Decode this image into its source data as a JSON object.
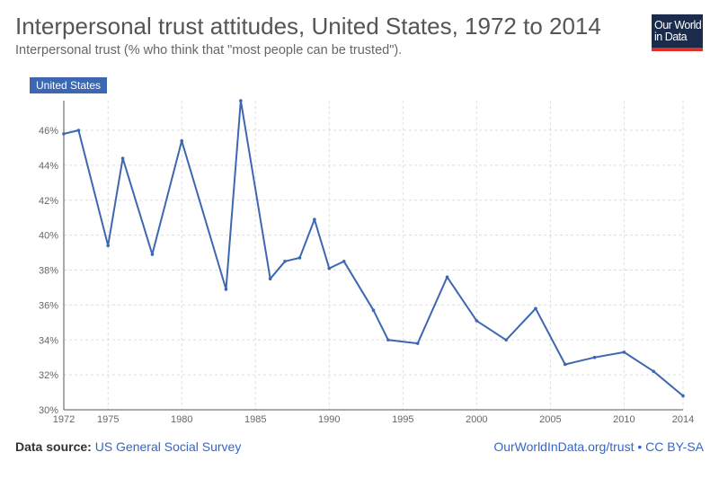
{
  "header": {
    "title": "Interpersonal trust attitudes, United States, 1972 to 2014",
    "subtitle": "Interpersonal trust (% who think that \"most people can be trusted\")."
  },
  "logo": {
    "line1": "Our World",
    "line2": "in Data"
  },
  "footer": {
    "source_label": "Data source:",
    "source_value": "US General Social Survey",
    "link": "OurWorldInData.org/trust",
    "separator": "•",
    "license": "CC BY-SA"
  },
  "colors": {
    "series": "#3d67b0",
    "grid": "#dddddd",
    "axis": "#555555"
  },
  "chart_data": {
    "type": "line",
    "title": "Interpersonal trust attitudes, United States, 1972 to 2014",
    "xlabel": "",
    "ylabel": "",
    "xlim": [
      1972,
      2014
    ],
    "ylim": [
      30,
      47.7
    ],
    "x_ticks": [
      1972,
      1975,
      1980,
      1985,
      1990,
      1995,
      2000,
      2005,
      2010,
      2014
    ],
    "y_ticks": [
      30,
      32,
      34,
      36,
      38,
      40,
      42,
      44,
      46
    ],
    "y_tick_labels": [
      "30%",
      "32%",
      "34%",
      "36%",
      "38%",
      "40%",
      "42%",
      "44%",
      "46%"
    ],
    "grid": true,
    "series": [
      {
        "name": "United States",
        "x": [
          1972,
          1973,
          1975,
          1976,
          1978,
          1980,
          1983,
          1984,
          1986,
          1987,
          1988,
          1989,
          1990,
          1991,
          1993,
          1994,
          1996,
          1998,
          2000,
          2002,
          2004,
          2006,
          2008,
          2010,
          2012,
          2014
        ],
        "values": [
          45.8,
          46.0,
          39.4,
          44.4,
          38.9,
          45.4,
          36.9,
          47.7,
          37.5,
          38.5,
          38.7,
          40.9,
          38.1,
          38.5,
          35.7,
          34.0,
          33.8,
          37.6,
          35.1,
          34.0,
          35.8,
          32.6,
          33.0,
          33.3,
          32.2,
          30.8
        ]
      }
    ]
  }
}
